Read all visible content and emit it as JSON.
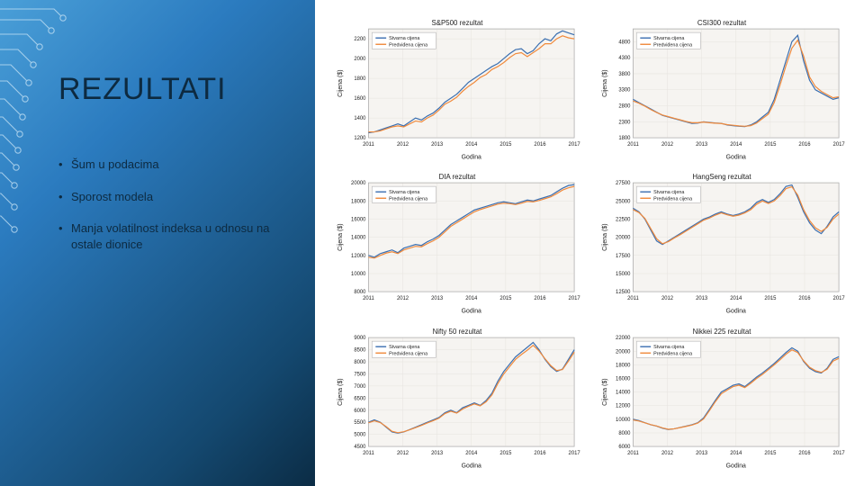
{
  "slide": {
    "title": "REZULTATI",
    "bullets": [
      "Šum u podacima",
      "Sporost modela",
      "Manja volatilnost indeksa u odnosu na ostale dionice"
    ],
    "left_gradient": [
      "#4a9fd8",
      "#2b7bbf",
      "#14486f",
      "#0b2c45"
    ],
    "circuit_stroke": "#c7e3f5"
  },
  "chart_common": {
    "plot_bg": "#f6f4f1",
    "grid_color": "#e6e3df",
    "border_color": "#aaaaaa",
    "axis_color": "#222222",
    "real_color": "#3b6fb0",
    "pred_color": "#f08a3c",
    "xlabel": "Godina",
    "ylabel": "Cijena ($)",
    "xticks": [
      "2011",
      "2012",
      "2013",
      "2014",
      "2015",
      "2016",
      "2017"
    ],
    "legend": [
      "Stvarna cijena",
      "Predviđena cijena"
    ]
  },
  "charts": [
    {
      "title": "S&P500 rezultat",
      "ylim": [
        1200,
        2300
      ],
      "ytick_step": 200,
      "real": [
        1250,
        1260,
        1280,
        1300,
        1320,
        1340,
        1320,
        1360,
        1400,
        1380,
        1420,
        1450,
        1500,
        1560,
        1600,
        1640,
        1700,
        1760,
        1800,
        1840,
        1880,
        1920,
        1950,
        2000,
        2050,
        2090,
        2100,
        2050,
        2080,
        2150,
        2200,
        2180,
        2250,
        2280,
        2260,
        2240
      ],
      "pred": [
        1260,
        1260,
        1270,
        1290,
        1310,
        1320,
        1310,
        1340,
        1370,
        1360,
        1400,
        1430,
        1480,
        1540,
        1570,
        1610,
        1670,
        1720,
        1760,
        1810,
        1840,
        1890,
        1920,
        1960,
        2010,
        2050,
        2060,
        2020,
        2060,
        2100,
        2150,
        2150,
        2200,
        2230,
        2210,
        2200
      ]
    },
    {
      "title": "CSI300 rezultat",
      "ylim": [
        1800,
        5200
      ],
      "ytick_step": 500,
      "real": [
        3000,
        2900,
        2800,
        2700,
        2600,
        2500,
        2450,
        2400,
        2350,
        2300,
        2250,
        2260,
        2300,
        2280,
        2260,
        2250,
        2200,
        2180,
        2160,
        2150,
        2200,
        2300,
        2450,
        2600,
        3000,
        3600,
        4200,
        4800,
        5000,
        4200,
        3600,
        3300,
        3200,
        3100,
        3000,
        3050
      ],
      "pred": [
        2950,
        2880,
        2790,
        2680,
        2590,
        2510,
        2460,
        2410,
        2360,
        2310,
        2270,
        2270,
        2290,
        2270,
        2255,
        2245,
        2210,
        2190,
        2170,
        2160,
        2180,
        2260,
        2400,
        2540,
        2900,
        3450,
        4050,
        4600,
        4850,
        4350,
        3700,
        3400,
        3250,
        3150,
        3050,
        3080
      ]
    },
    {
      "title": "DIA rezultat",
      "ylim": [
        8000,
        20000
      ],
      "ytick_step": 2000,
      "real": [
        12000,
        11800,
        12200,
        12400,
        12600,
        12300,
        12800,
        13000,
        13200,
        13100,
        13500,
        13800,
        14200,
        14800,
        15400,
        15800,
        16200,
        16600,
        17000,
        17200,
        17400,
        17600,
        17800,
        17900,
        17800,
        17700,
        17900,
        18100,
        18000,
        18200,
        18400,
        18600,
        19000,
        19400,
        19700,
        19800
      ],
      "pred": [
        11800,
        11700,
        12000,
        12250,
        12400,
        12200,
        12600,
        12800,
        13000,
        12950,
        13300,
        13600,
        14000,
        14600,
        15200,
        15600,
        16000,
        16400,
        16800,
        17050,
        17250,
        17450,
        17650,
        17750,
        17700,
        17600,
        17750,
        17950,
        17900,
        18050,
        18250,
        18450,
        18800,
        19200,
        19450,
        19600
      ]
    },
    {
      "title": "HangSeng rezultat",
      "ylim": [
        12500,
        27500
      ],
      "ytick_step": 2500,
      "real": [
        24000,
        23500,
        22500,
        21000,
        19500,
        19000,
        19500,
        20000,
        20500,
        21000,
        21500,
        22000,
        22500,
        22800,
        23200,
        23500,
        23200,
        23000,
        23200,
        23500,
        24000,
        24800,
        25200,
        24800,
        25200,
        26000,
        27000,
        27200,
        25500,
        23500,
        22000,
        21000,
        20500,
        21500,
        22800,
        23500
      ],
      "pred": [
        23800,
        23400,
        22600,
        21200,
        19800,
        19100,
        19400,
        19900,
        20350,
        20850,
        21350,
        21850,
        22350,
        22650,
        23050,
        23350,
        23100,
        22900,
        23050,
        23350,
        23800,
        24550,
        25000,
        24650,
        25000,
        25750,
        26700,
        26950,
        25800,
        23800,
        22300,
        21300,
        20800,
        21350,
        22500,
        23200
      ]
    },
    {
      "title": "Nifty 50 rezultat",
      "ylim": [
        4500,
        9000
      ],
      "ytick_step": 500,
      "real": [
        5500,
        5600,
        5500,
        5300,
        5100,
        5050,
        5100,
        5200,
        5300,
        5400,
        5500,
        5600,
        5700,
        5900,
        6000,
        5900,
        6100,
        6200,
        6300,
        6200,
        6400,
        6700,
        7200,
        7600,
        7900,
        8200,
        8400,
        8600,
        8800,
        8500,
        8100,
        7800,
        7600,
        7700,
        8100,
        8500
      ],
      "pred": [
        5480,
        5560,
        5490,
        5320,
        5130,
        5070,
        5110,
        5190,
        5280,
        5370,
        5470,
        5570,
        5670,
        5860,
        5960,
        5880,
        6050,
        6160,
        6260,
        6180,
        6350,
        6630,
        7100,
        7500,
        7800,
        8100,
        8300,
        8480,
        8680,
        8450,
        8130,
        7840,
        7640,
        7680,
        8030,
        8400
      ]
    },
    {
      "title": "Nikkei 225 rezultat",
      "ylim": [
        6000,
        22000
      ],
      "ytick_step": 2000,
      "real": [
        10000,
        9800,
        9500,
        9200,
        9000,
        8700,
        8500,
        8600,
        8800,
        9000,
        9200,
        9500,
        10200,
        11500,
        12800,
        14000,
        14500,
        15000,
        15200,
        14800,
        15500,
        16200,
        16800,
        17500,
        18200,
        19000,
        19800,
        20500,
        20000,
        18500,
        17500,
        17000,
        16800,
        17500,
        18800,
        19200
      ],
      "pred": [
        9900,
        9750,
        9480,
        9210,
        9010,
        8730,
        8530,
        8600,
        8770,
        8960,
        9150,
        9440,
        10050,
        11300,
        12600,
        13750,
        14300,
        14800,
        15000,
        14650,
        15300,
        16000,
        16600,
        17300,
        18000,
        18750,
        19550,
        20200,
        19800,
        18600,
        17650,
        17150,
        16900,
        17350,
        18550,
        18950
      ]
    }
  ]
}
